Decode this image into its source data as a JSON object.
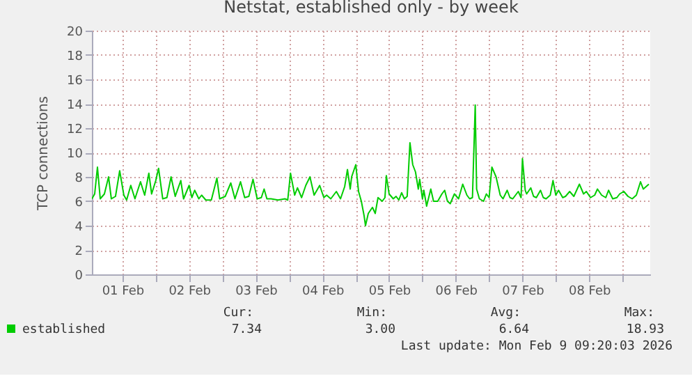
{
  "chart_data": {
    "type": "line",
    "title": "Netstat, established only - by week",
    "ylabel": "TCP connections",
    "xlim": [
      "2026-02-01T01:00",
      "2026-02-09T10:00"
    ],
    "xticks": [
      {
        "value": "2026-02-01T12:00",
        "label": "01 Feb"
      },
      {
        "value": "2026-02-02T00:00",
        "label": null
      },
      {
        "value": "2026-02-02T12:00",
        "label": "02 Feb"
      },
      {
        "value": "2026-02-03T00:00",
        "label": null
      },
      {
        "value": "2026-02-03T12:00",
        "label": "03 Feb"
      },
      {
        "value": "2026-02-04T00:00",
        "label": null
      },
      {
        "value": "2026-02-04T12:00",
        "label": "04 Feb"
      },
      {
        "value": "2026-02-05T00:00",
        "label": null
      },
      {
        "value": "2026-02-05T12:00",
        "label": "05 Feb"
      },
      {
        "value": "2026-02-06T00:00",
        "label": null
      },
      {
        "value": "2026-02-06T12:00",
        "label": "06 Feb"
      },
      {
        "value": "2026-02-07T00:00",
        "label": null
      },
      {
        "value": "2026-02-07T12:00",
        "label": "07 Feb"
      },
      {
        "value": "2026-02-08T00:00",
        "label": null
      },
      {
        "value": "2026-02-08T12:00",
        "label": "08 Feb"
      },
      {
        "value": "2026-02-09T00:00",
        "label": null
      }
    ],
    "ylim": [
      0,
      20
    ],
    "yticks": [
      0,
      2,
      4,
      6,
      8,
      10,
      12,
      14,
      16,
      18,
      20
    ],
    "grid": true,
    "legend": "bottom",
    "marker": "none",
    "line_style": "solid",
    "x": [
      "2026-02-01T01:00",
      "2026-02-01T02:00",
      "2026-02-01T03:00",
      "2026-02-01T04:00",
      "2026-02-01T05:30",
      "2026-02-01T07:00",
      "2026-02-01T08:00",
      "2026-02-01T09:30",
      "2026-02-01T11:00",
      "2026-02-01T12:30",
      "2026-02-01T13:30",
      "2026-02-01T15:00",
      "2026-02-01T16:30",
      "2026-02-01T18:30",
      "2026-02-01T20:00",
      "2026-02-01T21:30",
      "2026-02-01T22:30",
      "2026-02-02T00:00",
      "2026-02-02T01:00",
      "2026-02-02T02:30",
      "2026-02-02T04:00",
      "2026-02-02T05:30",
      "2026-02-02T07:00",
      "2026-02-02T09:00",
      "2026-02-02T10:00",
      "2026-02-02T12:00",
      "2026-02-02T13:00",
      "2026-02-02T14:00",
      "2026-02-02T15:30",
      "2026-02-02T16:30",
      "2026-02-02T18:00",
      "2026-02-02T20:00",
      "2026-02-02T22:00",
      "2026-02-02T23:00",
      "2026-02-03T01:00",
      "2026-02-03T03:00",
      "2026-02-03T04:30",
      "2026-02-03T06:30",
      "2026-02-03T08:00",
      "2026-02-03T09:30",
      "2026-02-03T11:00",
      "2026-02-03T12:30",
      "2026-02-03T14:00",
      "2026-02-03T15:00",
      "2026-02-03T16:00",
      "2026-02-03T17:30",
      "2026-02-03T20:00",
      "2026-02-03T22:30",
      "2026-02-03T23:30",
      "2026-02-04T00:30",
      "2026-02-04T02:00",
      "2026-02-04T03:00",
      "2026-02-04T04:30",
      "2026-02-04T06:00",
      "2026-02-04T07:30",
      "2026-02-04T09:00",
      "2026-02-04T11:00",
      "2026-02-04T12:30",
      "2026-02-04T13:30",
      "2026-02-04T15:00",
      "2026-02-04T17:00",
      "2026-02-04T18:30",
      "2026-02-04T20:00",
      "2026-02-04T21:00",
      "2026-02-04T22:00",
      "2026-02-04T22:30",
      "2026-02-05T00:00",
      "2026-02-05T01:00",
      "2026-02-05T02:00",
      "2026-02-05T03:00",
      "2026-02-05T03:30",
      "2026-02-05T04:30",
      "2026-02-05T06:00",
      "2026-02-05T07:00",
      "2026-02-05T08:00",
      "2026-02-05T09:30",
      "2026-02-05T10:30",
      "2026-02-05T11:00",
      "2026-02-05T12:00",
      "2026-02-05T13:30",
      "2026-02-05T14:30",
      "2026-02-05T15:30",
      "2026-02-05T16:30",
      "2026-02-05T17:30",
      "2026-02-05T18:30",
      "2026-02-05T19:30",
      "2026-02-05T20:30",
      "2026-02-05T21:30",
      "2026-02-05T22:30",
      "2026-02-05T23:00",
      "2026-02-06T00:00",
      "2026-02-06T00:30",
      "2026-02-06T01:30",
      "2026-02-06T03:00",
      "2026-02-06T04:00",
      "2026-02-06T05:30",
      "2026-02-06T07:00",
      "2026-02-06T08:00",
      "2026-02-06T09:00",
      "2026-02-06T10:00",
      "2026-02-06T11:30",
      "2026-02-06T13:00",
      "2026-02-06T14:30",
      "2026-02-06T16:00",
      "2026-02-06T17:00",
      "2026-02-06T18:00",
      "2026-02-06T19:00",
      "2026-02-06T19:30",
      "2026-02-06T20:30",
      "2026-02-06T22:00",
      "2026-02-06T23:00",
      "2026-02-07T00:00",
      "2026-02-07T01:00",
      "2026-02-07T02:30",
      "2026-02-07T04:00",
      "2026-02-07T05:00",
      "2026-02-07T06:30",
      "2026-02-07T07:30",
      "2026-02-07T08:30",
      "2026-02-07T10:30",
      "2026-02-07T11:30",
      "2026-02-07T12:00",
      "2026-02-07T13:00",
      "2026-02-07T13:30",
      "2026-02-07T15:00",
      "2026-02-07T16:00",
      "2026-02-07T17:00",
      "2026-02-07T18:30",
      "2026-02-07T19:30",
      "2026-02-07T20:30",
      "2026-02-07T22:00",
      "2026-02-07T23:00",
      "2026-02-08T00:00",
      "2026-02-08T01:00",
      "2026-02-08T02:30",
      "2026-02-08T03:30",
      "2026-02-08T05:00",
      "2026-02-08T06:30",
      "2026-02-08T08:30",
      "2026-02-08T10:00",
      "2026-02-08T11:00",
      "2026-02-08T12:30",
      "2026-02-08T14:00",
      "2026-02-08T15:00",
      "2026-02-08T16:30",
      "2026-02-08T18:00",
      "2026-02-08T19:00",
      "2026-02-08T20:30",
      "2026-02-08T22:00",
      "2026-02-08T23:00",
      "2026-02-09T00:30",
      "2026-02-09T02:00",
      "2026-02-09T03:30",
      "2026-02-09T05:00",
      "2026-02-09T06:30",
      "2026-02-09T07:30",
      "2026-02-09T08:30",
      "2026-02-09T09:30"
    ],
    "series": [
      {
        "name": "established",
        "color": "#00cc00",
        "values": [
          6.2,
          6.6,
          8.8,
          6.2,
          6.6,
          8.0,
          6.2,
          6.4,
          8.5,
          6.5,
          6.1,
          7.3,
          6.2,
          7.6,
          6.5,
          8.3,
          6.6,
          7.7,
          8.7,
          6.2,
          6.3,
          8.0,
          6.4,
          7.7,
          6.2,
          7.3,
          6.3,
          6.9,
          6.2,
          6.5,
          6.1,
          6.1,
          7.9,
          6.2,
          6.4,
          7.5,
          6.2,
          7.6,
          6.3,
          6.4,
          7.8,
          6.2,
          6.3,
          7.0,
          6.2,
          6.2,
          6.1,
          6.2,
          6.1,
          8.3,
          6.5,
          7.1,
          6.3,
          7.3,
          8.0,
          6.5,
          7.3,
          6.3,
          6.5,
          6.2,
          6.8,
          6.2,
          7.2,
          8.6,
          7.0,
          8.0,
          9.0,
          6.8,
          6.0,
          4.8,
          4.0,
          5.0,
          5.5,
          5.0,
          6.3,
          6.0,
          6.3,
          8.1,
          6.6,
          6.2,
          6.4,
          6.1,
          6.7,
          6.2,
          6.4,
          10.8,
          9.0,
          8.4,
          7.0,
          7.8,
          6.2,
          6.9,
          5.6,
          7.0,
          6.0,
          6.0,
          6.6,
          6.9,
          6.0,
          5.8,
          6.6,
          6.2,
          7.4,
          6.5,
          6.2,
          6.3,
          13.9,
          7.0,
          6.2,
          6.0,
          6.6,
          6.3,
          8.8,
          8.0,
          6.5,
          6.2,
          6.9,
          6.3,
          6.2,
          6.8,
          6.3,
          9.5,
          6.9,
          6.6,
          7.1,
          6.4,
          6.3,
          6.9,
          6.3,
          6.2,
          6.5,
          7.7,
          6.5,
          6.9,
          6.3,
          6.4,
          6.8,
          6.4,
          7.4,
          6.6,
          6.8,
          6.3,
          6.5,
          7.0,
          6.5,
          6.3,
          6.9,
          6.2,
          6.3,
          6.6,
          6.8,
          6.4,
          6.2,
          6.5,
          7.6,
          7.0,
          7.2,
          7.4
        ]
      }
    ],
    "annotations": [
      "Cur:",
      "Min:",
      "Avg:",
      "Max:",
      "7.34",
      "3.00",
      "6.64",
      "18.93",
      "Last update: Mon Feb  9 09:20:03 2026"
    ]
  }
}
